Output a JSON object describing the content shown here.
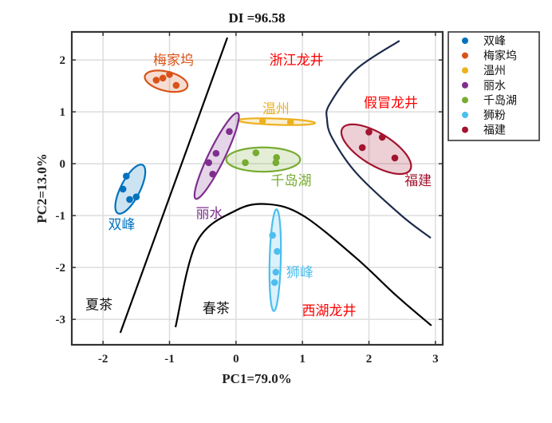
{
  "chart_data": {
    "type": "scatter",
    "title": "DI =96.58",
    "xlabel": "PC1=79.0%",
    "ylabel": "PC2=13.0%",
    "xlim": [
      -2.47,
      3.11
    ],
    "ylim": [
      -3.49,
      2.54
    ],
    "xticks": [
      -2,
      -1,
      0,
      1,
      2,
      3
    ],
    "yticks": [
      -3,
      -2,
      -1,
      0,
      1,
      2
    ],
    "grid": true,
    "legend_position": "outside-top-right",
    "series": [
      {
        "name": "双峰",
        "color": "#0072BD",
        "x": [
          -1.65,
          -1.7,
          -1.6,
          -1.5
        ],
        "y": [
          -0.24,
          -0.49,
          -0.69,
          -0.64
        ],
        "ellipse": {
          "center": [
            -1.59,
            -0.49
          ],
          "major": [
            0.186,
            0.466
          ],
          "minor": [
            0.128,
            -0.085
          ]
        }
      },
      {
        "name": "梅家坞",
        "color": "#D95319",
        "x": [
          -1.2,
          -1.1,
          -1.0,
          -0.9
        ],
        "y": [
          1.61,
          1.65,
          1.72,
          1.51
        ],
        "ellipse": {
          "center": [
            -1.05,
            1.59
          ],
          "major": [
            0.32,
            -0.1
          ],
          "minor": [
            -0.035,
            -0.18
          ]
        }
      },
      {
        "name": "温州",
        "color": "#EDB120",
        "x": [
          0.4,
          0.82
        ],
        "y": [
          0.82,
          0.8
        ],
        "ellipse": {
          "center": [
            0.61,
            0.81
          ],
          "major": [
            0.58,
            -0.025
          ],
          "minor": [
            0,
            0.06
          ]
        }
      },
      {
        "name": "丽水",
        "color": "#7E2F8E",
        "x": [
          -0.1,
          -0.3,
          -0.41,
          -0.35
        ],
        "y": [
          0.62,
          0.2,
          0.02,
          -0.2
        ],
        "ellipse": {
          "center": [
            -0.29,
            0.15
          ],
          "major": [
            0.316,
            0.826
          ],
          "minor": [
            0.108,
            -0.068
          ]
        }
      },
      {
        "name": "千岛湖",
        "color": "#77AC30",
        "x": [
          0.3,
          0.14,
          0.61,
          0.6
        ],
        "y": [
          0.21,
          0.02,
          0.12,
          0.02
        ],
        "ellipse": {
          "center": [
            0.41,
            0.08
          ],
          "major": [
            0.556,
            0
          ],
          "minor": [
            0,
            0.234
          ]
        }
      },
      {
        "name": "狮粉",
        "color": "#4DBEEE",
        "x": [
          0.55,
          0.62,
          0.6,
          0.58
        ],
        "y": [
          -1.38,
          -1.69,
          -2.09,
          -2.29
        ],
        "ellipse": {
          "center": [
            0.59,
            -1.86
          ],
          "major": [
            0.02,
            0.98
          ],
          "minor": [
            0.084,
            0
          ]
        }
      },
      {
        "name": "福建",
        "color": "#A2142F",
        "x": [
          2.0,
          2.2,
          1.9,
          2.39
        ],
        "y": [
          0.61,
          0.51,
          0.31,
          0.11
        ],
        "ellipse": {
          "center": [
            2.11,
            0.28
          ],
          "major": [
            0.51,
            -0.4
          ],
          "minor": [
            -0.125,
            -0.263
          ]
        }
      }
    ],
    "boundaries": [
      {
        "name": "summer-spring-line",
        "color": "#000000",
        "x": [
          -0.13,
          -1.74
        ],
        "y": [
          2.43,
          -3.26
        ]
      },
      {
        "name": "xihu-boundary-curve",
        "color": "#000000",
        "x": [
          -0.91,
          -0.59,
          0,
          0.48,
          1.01,
          1.81,
          2.41,
          2.94
        ],
        "y": [
          -3.15,
          -1.51,
          -0.9,
          -0.78,
          -1.0,
          -1.82,
          -2.54,
          -3.12
        ]
      },
      {
        "name": "fake-boundary-curve",
        "color": "#1B2A4A",
        "x": [
          2.46,
          1.81,
          1.41,
          1.37,
          1.45,
          1.81,
          2.49,
          2.93
        ],
        "y": [
          2.37,
          1.82,
          1.15,
          0.85,
          0.49,
          -0.18,
          -1.0,
          -1.43
        ]
      }
    ],
    "annotations": [
      {
        "text": "梅家坞",
        "x": -0.94,
        "y": 2.0,
        "color": "#D95319"
      },
      {
        "text": "浙江龙井",
        "x": 0.91,
        "y": 2.0,
        "color": "#FF0000"
      },
      {
        "text": "温州",
        "x": 0.6,
        "y": 1.06,
        "color": "#EDB120"
      },
      {
        "text": "假冒龙井",
        "x": 2.33,
        "y": 1.18,
        "color": "#FF0000"
      },
      {
        "text": "福建",
        "x": 2.74,
        "y": -0.32,
        "color": "#A2142F"
      },
      {
        "text": "千岛湖",
        "x": 0.83,
        "y": -0.32,
        "color": "#77AC30"
      },
      {
        "text": "丽水",
        "x": -0.4,
        "y": -0.95,
        "color": "#7E2F8E"
      },
      {
        "text": "双峰",
        "x": -1.72,
        "y": -1.17,
        "color": "#0072BD"
      },
      {
        "text": "狮峰",
        "x": 0.96,
        "y": -2.09,
        "color": "#4DBEEE"
      },
      {
        "text": "夏茶",
        "x": -2.06,
        "y": -2.71,
        "color": "#111111"
      },
      {
        "text": "春茶",
        "x": -0.3,
        "y": -2.78,
        "color": "#111111"
      },
      {
        "text": "西湖龙井",
        "x": 1.4,
        "y": -2.83,
        "color": "#FF0000"
      }
    ]
  }
}
